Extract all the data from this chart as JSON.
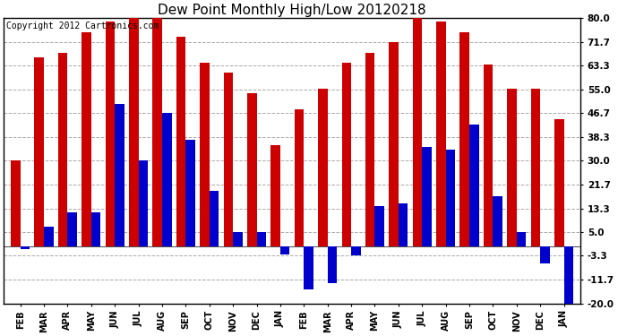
{
  "title": "Dew Point Monthly High/Low 20120218",
  "copyright": "Copyright 2012 Cartronics.com",
  "categories": [
    "FEB",
    "MAR",
    "APR",
    "MAY",
    "JUN",
    "JUL",
    "AUG",
    "SEP",
    "OCT",
    "NOV",
    "DEC",
    "JAN",
    "FEB",
    "MAR",
    "APR",
    "MAY",
    "JUN",
    "JUL",
    "AUG",
    "SEP",
    "OCT",
    "NOV",
    "DEC",
    "JAN"
  ],
  "highs": [
    30.0,
    66.2,
    68.0,
    75.2,
    78.8,
    80.6,
    80.6,
    73.4,
    64.4,
    60.8,
    53.6,
    35.6,
    48.2,
    55.4,
    64.4,
    68.0,
    71.6,
    80.6,
    78.8,
    75.2,
    63.8,
    55.4,
    55.4,
    44.6
  ],
  "lows": [
    -1.0,
    7.0,
    12.0,
    12.0,
    50.0,
    30.0,
    46.7,
    37.4,
    19.4,
    5.0,
    5.0,
    -3.0,
    -15.0,
    -13.0,
    -3.3,
    14.0,
    15.0,
    35.0,
    34.0,
    42.8,
    17.6,
    5.0,
    -6.0,
    -20.0
  ],
  "ylim": [
    -20.0,
    80.0
  ],
  "yticks": [
    -20.0,
    -11.7,
    -3.3,
    5.0,
    13.3,
    21.7,
    30.0,
    38.3,
    46.7,
    55.0,
    63.3,
    71.7,
    80.0
  ],
  "bar_color_high": "#cc0000",
  "bar_color_low": "#0000cc",
  "background_color": "#ffffff",
  "grid_color": "#aaaaaa",
  "title_fontsize": 11,
  "copyright_fontsize": 7
}
